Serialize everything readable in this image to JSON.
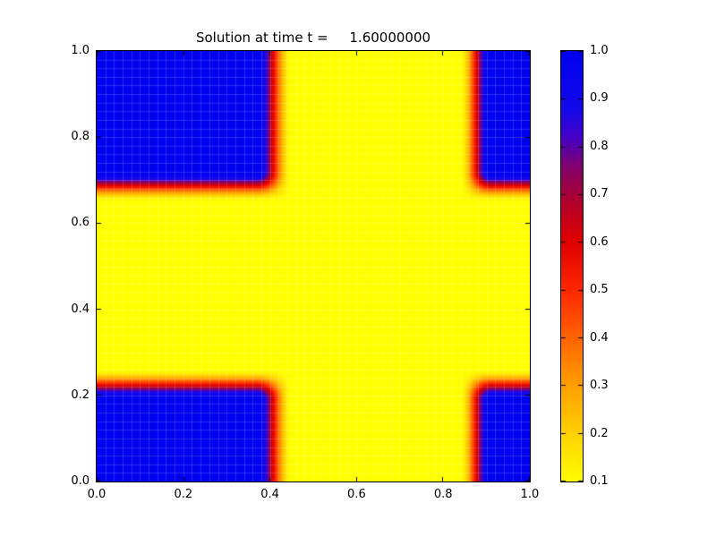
{
  "figure": {
    "background": "#ffffff"
  },
  "chart_data": {
    "type": "heatmap",
    "title": "Solution at time t =     1.60000000",
    "xlim": [
      0,
      1
    ],
    "ylim": [
      0,
      1
    ],
    "x_tick_values": [
      0,
      0.2,
      0.4,
      0.6,
      0.8,
      1.0
    ],
    "x_tick_labels": [
      "0.0",
      "0.2",
      "0.4",
      "0.6",
      "0.8",
      "1.0"
    ],
    "y_tick_values": [
      0,
      0.2,
      0.4,
      0.6,
      0.8,
      1.0
    ],
    "y_tick_labels": [
      "0.0",
      "0.2",
      "0.4",
      "0.6",
      "0.8",
      "1.0"
    ],
    "value_min": 0.1,
    "value_max": 1.0,
    "colorbar": {
      "tick_values": [
        0.1,
        0.2,
        0.3,
        0.4,
        0.5,
        0.6,
        0.7,
        0.8,
        0.9,
        1.0
      ],
      "tick_labels": [
        "0.1",
        "0.2",
        "0.3",
        "0.4",
        "0.5",
        "0.6",
        "0.7",
        "0.8",
        "0.9",
        "1.0"
      ]
    },
    "field": {
      "description": "u(x,y) = base + amp * F(x) * G(y); four high-value (1.0) corner blocks diffusing into a low-value (0.1) central cross",
      "base": 0.1,
      "amp": 0.9,
      "x_profile": [
        [
          0.0,
          1
        ],
        [
          0.37,
          1
        ],
        [
          0.45,
          0
        ],
        [
          0.84,
          0
        ],
        [
          0.91,
          1
        ],
        [
          1.0,
          1
        ]
      ],
      "y_profile": [
        [
          0.0,
          1
        ],
        [
          0.19,
          1
        ],
        [
          0.26,
          0
        ],
        [
          0.65,
          0
        ],
        [
          0.72,
          1
        ],
        [
          1.0,
          1
        ]
      ]
    },
    "colormap_stops": [
      [
        0.1,
        "#ffff00"
      ],
      [
        0.2,
        "#ffd200"
      ],
      [
        0.3,
        "#ffa000"
      ],
      [
        0.4,
        "#ff6400"
      ],
      [
        0.5,
        "#ff2800"
      ],
      [
        0.6,
        "#e10000"
      ],
      [
        0.68,
        "#b40028"
      ],
      [
        0.76,
        "#82006e"
      ],
      [
        0.82,
        "#4600c8"
      ],
      [
        0.88,
        "#140aeb"
      ],
      [
        1.0,
        "#0000f0"
      ]
    ],
    "grid_divisions": 50,
    "grid_line_color": "rgba(255,255,255,0.16)",
    "high_color": "#0000f0",
    "low_color": "#ffff00"
  }
}
